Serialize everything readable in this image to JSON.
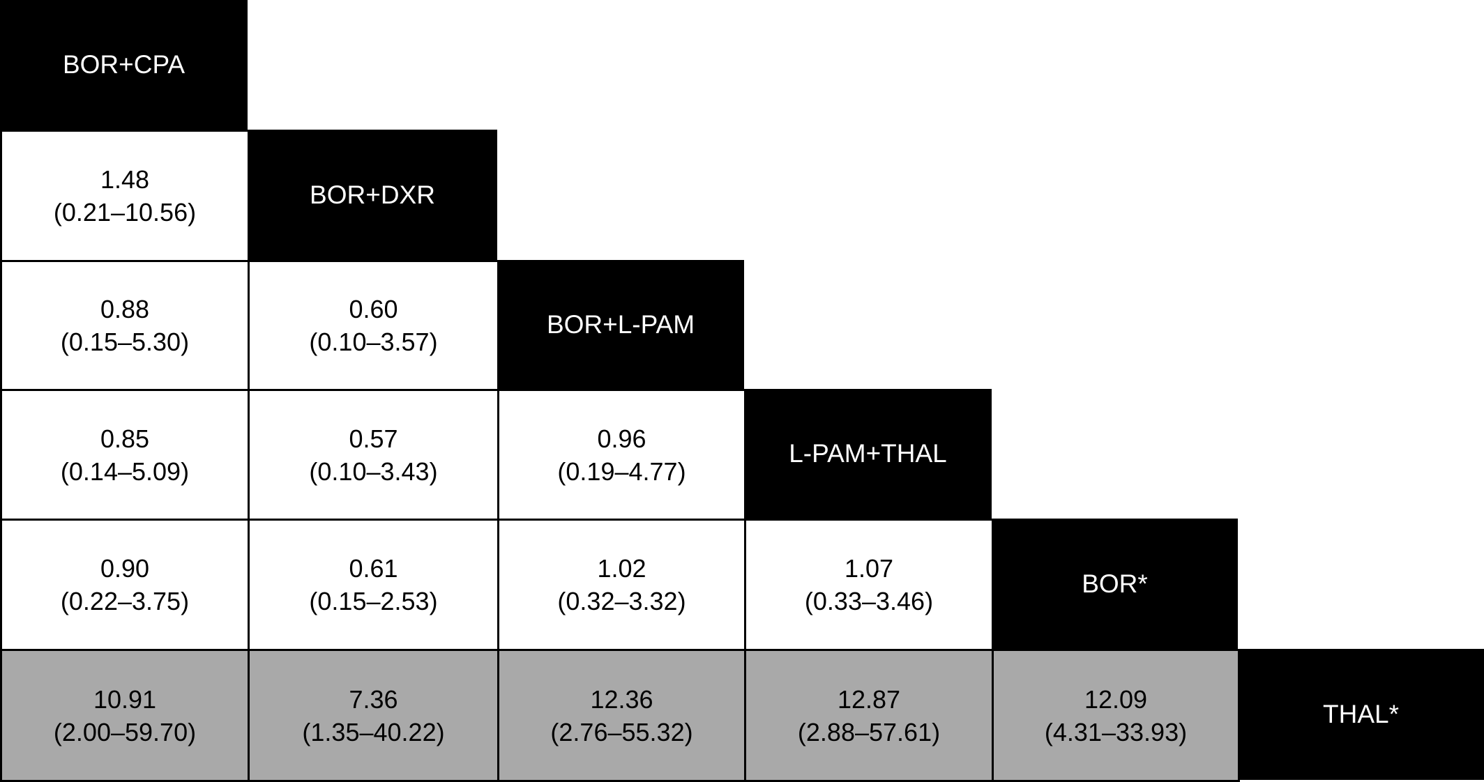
{
  "colors": {
    "header_bg": "#000000",
    "header_text": "#ffffff",
    "cell_bg": "#ffffff",
    "shaded_bg": "#a9a9a9",
    "border": "#000000"
  },
  "treatments": [
    "BOR+CPA",
    "BOR+DXR",
    "BOR+L-PAM",
    "L-PAM+THAL",
    "BOR*",
    "THAL*"
  ],
  "comparisons": [
    {
      "row": 1,
      "col": 0,
      "estimate": "1.48",
      "ci": "(0.21–10.56)",
      "shaded": false
    },
    {
      "row": 2,
      "col": 0,
      "estimate": "0.88",
      "ci": "(0.15–5.30)",
      "shaded": false
    },
    {
      "row": 2,
      "col": 1,
      "estimate": "0.60",
      "ci": "(0.10–3.57)",
      "shaded": false
    },
    {
      "row": 3,
      "col": 0,
      "estimate": "0.85",
      "ci": "(0.14–5.09)",
      "shaded": false
    },
    {
      "row": 3,
      "col": 1,
      "estimate": "0.57",
      "ci": "(0.10–3.43)",
      "shaded": false
    },
    {
      "row": 3,
      "col": 2,
      "estimate": "0.96",
      "ci": "(0.19–4.77)",
      "shaded": false
    },
    {
      "row": 4,
      "col": 0,
      "estimate": "0.90",
      "ci": "(0.22–3.75)",
      "shaded": false
    },
    {
      "row": 4,
      "col": 1,
      "estimate": "0.61",
      "ci": "(0.15–2.53)",
      "shaded": false
    },
    {
      "row": 4,
      "col": 2,
      "estimate": "1.02",
      "ci": "(0.32–3.32)",
      "shaded": false
    },
    {
      "row": 4,
      "col": 3,
      "estimate": "1.07",
      "ci": "(0.33–3.46)",
      "shaded": false
    },
    {
      "row": 5,
      "col": 0,
      "estimate": "10.91",
      "ci": "(2.00–59.70)",
      "shaded": true
    },
    {
      "row": 5,
      "col": 1,
      "estimate": "7.36",
      "ci": "(1.35–40.22)",
      "shaded": true
    },
    {
      "row": 5,
      "col": 2,
      "estimate": "12.36",
      "ci": "(2.76–55.32)",
      "shaded": true
    },
    {
      "row": 5,
      "col": 3,
      "estimate": "12.87",
      "ci": "(2.88–57.61)",
      "shaded": true
    },
    {
      "row": 5,
      "col": 4,
      "estimate": "12.09",
      "ci": "(4.31–33.93)",
      "shaded": true
    }
  ]
}
